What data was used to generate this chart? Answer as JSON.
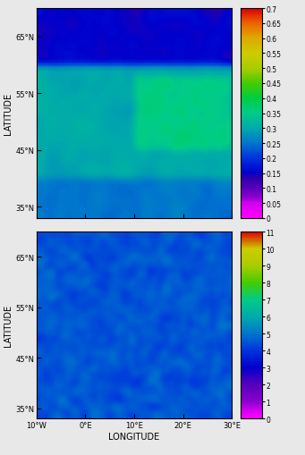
{
  "fig_width": 3.41,
  "fig_height": 5.1,
  "dpi": 100,
  "panel_a": {
    "title": "",
    "colorbar_ticks": [
      0,
      0.05,
      0.1,
      0.15,
      0.2,
      0.25,
      0.3,
      0.35,
      0.4,
      0.45,
      0.5,
      0.55,
      0.6,
      0.65,
      0.7
    ],
    "colorbar_labels": [
      "0",
      "0.05",
      "0.1",
      "0.15",
      "0.2",
      "0.25",
      "0.3",
      "0.35",
      "0.4",
      "0.45",
      "0.5",
      "0.55",
      "0.6",
      "0.65",
      "0.7"
    ],
    "vmin": 0,
    "vmax": 0.7,
    "colors": [
      "#ff00ff",
      "#9900cc",
      "#6600cc",
      "#3300cc",
      "#0033cc",
      "#0066cc",
      "#0099cc",
      "#00cccc",
      "#00cc99",
      "#33cc00",
      "#99cc00",
      "#cccc00",
      "#cc9900",
      "#cc6600",
      "#cc3300",
      "#cc0000",
      "#990000"
    ]
  },
  "panel_b": {
    "title": "",
    "colorbar_ticks": [
      0,
      1,
      2,
      3,
      4,
      5,
      6,
      7,
      8,
      9,
      10,
      11
    ],
    "colorbar_labels": [
      "0",
      "1",
      "2",
      "3",
      "4",
      "5",
      "6",
      "7",
      "8",
      "9",
      "10",
      "11"
    ],
    "vmin": 0,
    "vmax": 11,
    "colors": [
      "#ff00ff",
      "#9900cc",
      "#6600cc",
      "#3300cc",
      "#0033cc",
      "#0066cc",
      "#0099cc",
      "#00cccc",
      "#00cc99",
      "#33cc00",
      "#99cc00",
      "#cccc00",
      "#cc9900",
      "#cc6600",
      "#cc3300",
      "#cc0000",
      "#990000"
    ]
  },
  "lon_range": [
    -10,
    30
  ],
  "lat_range": [
    33,
    70
  ],
  "lon_ticks": [
    -10,
    0,
    10,
    20,
    30
  ],
  "lon_labels": [
    "10°W",
    "0°E",
    "10°E",
    "20°E",
    "30°E"
  ],
  "lat_ticks": [
    35,
    45,
    55,
    65
  ],
  "lat_labels": [
    "35°N",
    "45°N",
    "55°N",
    "65°N"
  ],
  "xlabel": "LONGITUDE",
  "ylabel": "LATITUDE",
  "bg_color": "#ffffff",
  "ocean_color": "#ffffff",
  "colorbar_aod_colors": [
    "#ff00ff",
    "#cc00cc",
    "#8800aa",
    "#4400bb",
    "#0000cc",
    "#0044cc",
    "#0088cc",
    "#00aaaa",
    "#00bb88",
    "#44bb44",
    "#88cc00",
    "#bbcc00",
    "#ddbb00",
    "#ee8800",
    "#ee4400",
    "#dd0000",
    "#990000"
  ],
  "colorbar_obs_colors": [
    "#ff00ff",
    "#cc00cc",
    "#8800aa",
    "#4400bb",
    "#0000cc",
    "#0044cc",
    "#0088cc",
    "#00aaaa",
    "#00bb88",
    "#44bb44",
    "#88cc00",
    "#bbcc00",
    "#ddbb00"
  ]
}
